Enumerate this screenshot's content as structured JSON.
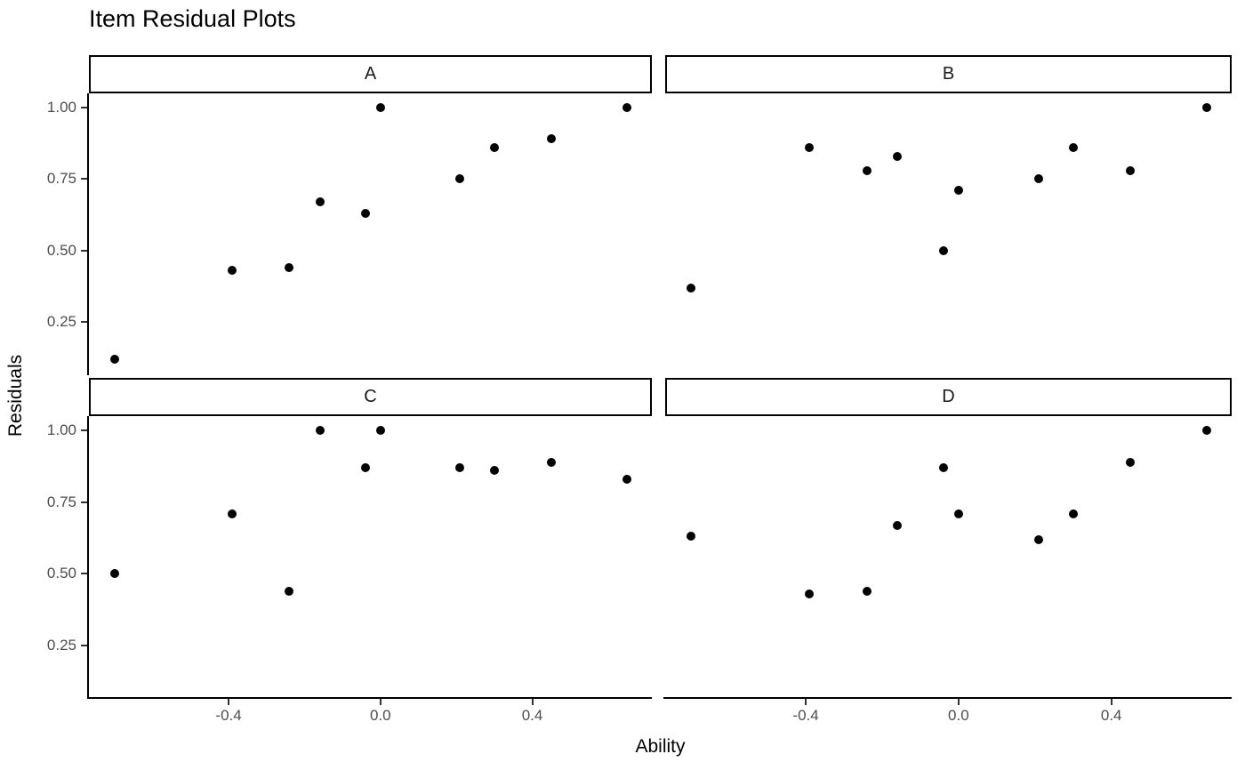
{
  "title": "Item Residual Plots",
  "x_axis_title": "Ability",
  "y_axis_title": "Residuals",
  "chart_data": {
    "type": "scatter",
    "facet_layout": "2x2",
    "xlabel": "Ability",
    "ylabel": "Residuals",
    "xlim": [
      -0.768,
      0.715
    ],
    "ylim": [
      0.07,
      1.05
    ],
    "x_ticks": [
      -0.4,
      0.0,
      0.4
    ],
    "x_tick_labels": [
      "-0.4",
      "0.0",
      "0.4"
    ],
    "y_ticks": [
      1.0,
      0.75,
      0.5,
      0.25
    ],
    "y_tick_labels": [
      "1.00",
      "0.75",
      "0.50",
      "0.25"
    ],
    "grid": false,
    "legend_position": "none",
    "point_color": "#000000",
    "axis_line_color": "#000000",
    "tick_label_color": "#4d4d4d",
    "strip_text_color": "#1a1a1a",
    "facets": [
      {
        "label": "A",
        "points": [
          [
            -0.7,
            0.12
          ],
          [
            -0.39,
            0.43
          ],
          [
            -0.24,
            0.44
          ],
          [
            -0.16,
            0.67
          ],
          [
            -0.04,
            0.63
          ],
          [
            0.0,
            1.0
          ],
          [
            0.21,
            0.75
          ],
          [
            0.3,
            0.86
          ],
          [
            0.45,
            0.89
          ],
          [
            0.65,
            1.0
          ]
        ]
      },
      {
        "label": "B",
        "points": [
          [
            -0.7,
            0.37
          ],
          [
            -0.39,
            0.86
          ],
          [
            -0.24,
            0.78
          ],
          [
            -0.16,
            0.83
          ],
          [
            -0.04,
            0.5
          ],
          [
            0.0,
            0.71
          ],
          [
            0.21,
            0.75
          ],
          [
            0.3,
            0.86
          ],
          [
            0.45,
            0.78
          ],
          [
            0.65,
            1.0
          ]
        ]
      },
      {
        "label": "C",
        "points": [
          [
            -0.7,
            0.5
          ],
          [
            -0.39,
            0.71
          ],
          [
            -0.24,
            0.44
          ],
          [
            -0.16,
            1.0
          ],
          [
            -0.04,
            0.87
          ],
          [
            0.0,
            1.0
          ],
          [
            0.21,
            0.87
          ],
          [
            0.3,
            0.86
          ],
          [
            0.45,
            0.89
          ],
          [
            0.65,
            0.83
          ]
        ]
      },
      {
        "label": "D",
        "points": [
          [
            -0.7,
            0.63
          ],
          [
            -0.39,
            0.43
          ],
          [
            -0.24,
            0.44
          ],
          [
            -0.16,
            0.67
          ],
          [
            -0.04,
            0.87
          ],
          [
            0.0,
            0.71
          ],
          [
            0.21,
            0.62
          ],
          [
            0.3,
            0.71
          ],
          [
            0.45,
            0.89
          ],
          [
            0.65,
            1.0
          ]
        ]
      }
    ]
  }
}
